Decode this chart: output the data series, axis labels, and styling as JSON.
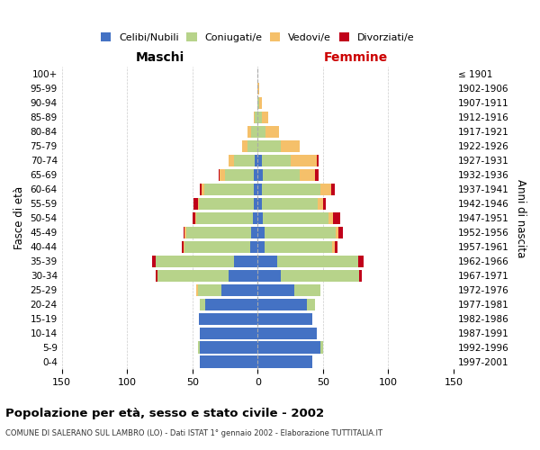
{
  "age_groups": [
    "0-4",
    "5-9",
    "10-14",
    "15-19",
    "20-24",
    "25-29",
    "30-34",
    "35-39",
    "40-44",
    "45-49",
    "50-54",
    "55-59",
    "60-64",
    "65-69",
    "70-74",
    "75-79",
    "80-84",
    "85-89",
    "90-94",
    "95-99",
    "100+"
  ],
  "birth_years": [
    "1997-2001",
    "1992-1996",
    "1987-1991",
    "1982-1986",
    "1977-1981",
    "1972-1976",
    "1967-1971",
    "1962-1966",
    "1957-1961",
    "1952-1956",
    "1947-1951",
    "1942-1946",
    "1937-1941",
    "1932-1936",
    "1927-1931",
    "1922-1926",
    "1917-1921",
    "1912-1916",
    "1907-1911",
    "1902-1906",
    "≤ 1901"
  ],
  "male": {
    "celibi": [
      44,
      44,
      44,
      45,
      40,
      28,
      22,
      18,
      6,
      5,
      4,
      3,
      3,
      3,
      2,
      0,
      0,
      0,
      0,
      0,
      0
    ],
    "coniugati": [
      0,
      2,
      0,
      0,
      4,
      18,
      55,
      60,
      50,
      50,
      43,
      42,
      38,
      22,
      16,
      8,
      5,
      2,
      0,
      0,
      0
    ],
    "vedovi": [
      0,
      0,
      0,
      0,
      0,
      1,
      0,
      0,
      1,
      1,
      1,
      1,
      2,
      4,
      4,
      4,
      3,
      1,
      0,
      0,
      0
    ],
    "divorziati": [
      0,
      0,
      0,
      0,
      0,
      0,
      1,
      3,
      1,
      1,
      2,
      3,
      1,
      1,
      0,
      0,
      0,
      0,
      0,
      0,
      0
    ]
  },
  "female": {
    "nubili": [
      42,
      48,
      45,
      42,
      38,
      28,
      18,
      15,
      5,
      5,
      4,
      3,
      3,
      4,
      3,
      0,
      0,
      0,
      0,
      0,
      0
    ],
    "coniugate": [
      0,
      2,
      0,
      0,
      6,
      20,
      60,
      62,
      52,
      55,
      50,
      43,
      45,
      28,
      22,
      18,
      6,
      3,
      1,
      0,
      0
    ],
    "vedove": [
      0,
      0,
      0,
      0,
      0,
      0,
      0,
      0,
      2,
      2,
      4,
      4,
      8,
      12,
      20,
      14,
      10,
      5,
      2,
      1,
      0
    ],
    "divorziate": [
      0,
      0,
      0,
      0,
      0,
      0,
      2,
      4,
      2,
      3,
      5,
      2,
      3,
      3,
      2,
      0,
      0,
      0,
      0,
      0,
      0
    ]
  },
  "color_celibi": "#4472c4",
  "color_coniugati": "#b7d38a",
  "color_vedovi": "#f5c06a",
  "color_divorziati": "#c0001a",
  "title": "Popolazione per età, sesso e stato civile - 2002",
  "subtitle": "COMUNE DI SALERANO SUL LAMBRO (LO) - Dati ISTAT 1° gennaio 2002 - Elaborazione TUTTITALIA.IT",
  "label_maschi": "Maschi",
  "label_femmine": "Femmine",
  "ylabel_left": "Fasce di età",
  "ylabel_right": "Anni di nascita",
  "xlim": 150,
  "bg_color": "#ffffff",
  "grid_color": "#cccccc",
  "legend_labels": [
    "Celibi/Nubili",
    "Coniugati/e",
    "Vedovi/e",
    "Divorziati/e"
  ]
}
